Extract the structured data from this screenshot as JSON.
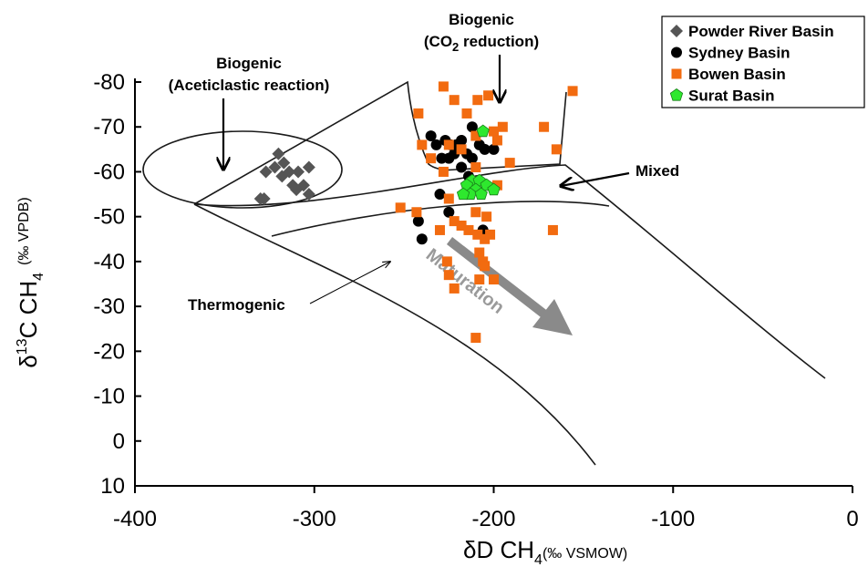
{
  "chart_data": {
    "type": "scatter",
    "xlabel_main": "δD CH",
    "xlabel_sub": "4",
    "xlabel_unit": "(‰ VSMOW)",
    "ylabel_main": "δ",
    "ylabel_sup": "13",
    "ylabel_mid": "C CH",
    "ylabel_sub": "4",
    "ylabel_unit": "(‰ VPDB)",
    "xlim": [
      -400,
      0
    ],
    "ylim": [
      10,
      -80
    ],
    "x_ticks": [
      {
        "value": -400,
        "label": "-400"
      },
      {
        "value": -300,
        "label": "-300"
      },
      {
        "value": -200,
        "label": "-200"
      },
      {
        "value": -100,
        "label": "-100"
      },
      {
        "value": 0,
        "label": "0"
      }
    ],
    "y_ticks": [
      {
        "value": -80,
        "label": "-80"
      },
      {
        "value": -70,
        "label": "-70"
      },
      {
        "value": -60,
        "label": "-60"
      },
      {
        "value": -50,
        "label": "-50"
      },
      {
        "value": -40,
        "label": "-40"
      },
      {
        "value": -30,
        "label": "-30"
      },
      {
        "value": -20,
        "label": "-20"
      },
      {
        "value": -10,
        "label": "-10"
      },
      {
        "value": 0,
        "label": "0"
      },
      {
        "value": 10,
        "label": "10"
      }
    ],
    "legend_position": "top-right",
    "series": [
      {
        "name": "Powder River Basin",
        "marker": "diamond",
        "color": "#555555",
        "points": [
          [
            -320,
            -64
          ],
          [
            -317,
            -62
          ],
          [
            -322,
            -61
          ],
          [
            -314,
            -60
          ],
          [
            -327,
            -60
          ],
          [
            -318,
            -59
          ],
          [
            -303,
            -61
          ],
          [
            -309,
            -60
          ],
          [
            -312,
            -57
          ],
          [
            -306,
            -57
          ],
          [
            -310,
            -56
          ],
          [
            -303,
            -55
          ],
          [
            -330,
            -54
          ],
          [
            -328,
            -54
          ]
        ]
      },
      {
        "name": "Sydney Basin",
        "marker": "circle",
        "color": "#000000",
        "points": [
          [
            -235,
            -68
          ],
          [
            -232,
            -66
          ],
          [
            -227,
            -67
          ],
          [
            -224,
            -66
          ],
          [
            -221,
            -66
          ],
          [
            -218,
            -67
          ],
          [
            -212,
            -70
          ],
          [
            -215,
            -64
          ],
          [
            -222,
            -64
          ],
          [
            -229,
            -63
          ],
          [
            -225,
            -63
          ],
          [
            -212,
            -63
          ],
          [
            -208,
            -66
          ],
          [
            -205,
            -65
          ],
          [
            -200,
            -65
          ],
          [
            -218,
            -61
          ],
          [
            -230,
            -55
          ],
          [
            -225,
            -51
          ],
          [
            -242,
            -49
          ],
          [
            -240,
            -45
          ],
          [
            -206,
            -47
          ],
          [
            -210,
            -56
          ],
          [
            -214,
            -59
          ]
        ]
      },
      {
        "name": "Bowen Basin",
        "marker": "square",
        "color": "#f26b10",
        "points": [
          [
            -228,
            -79
          ],
          [
            -209,
            -76
          ],
          [
            -203,
            -77
          ],
          [
            -156,
            -78
          ],
          [
            -242,
            -73
          ],
          [
            -222,
            -76
          ],
          [
            -215,
            -73
          ],
          [
            -200,
            -69
          ],
          [
            -195,
            -70
          ],
          [
            -172,
            -70
          ],
          [
            -240,
            -66
          ],
          [
            -225,
            -66
          ],
          [
            -218,
            -65
          ],
          [
            -210,
            -68
          ],
          [
            -198,
            -67
          ],
          [
            -165,
            -65
          ],
          [
            -235,
            -63
          ],
          [
            -228,
            -60
          ],
          [
            -210,
            -61
          ],
          [
            -191,
            -62
          ],
          [
            -198,
            -57
          ],
          [
            -225,
            -54
          ],
          [
            -252,
            -52
          ],
          [
            -243,
            -51
          ],
          [
            -222,
            -49
          ],
          [
            -210,
            -51
          ],
          [
            -204,
            -50
          ],
          [
            -218,
            -48
          ],
          [
            -214,
            -47
          ],
          [
            -230,
            -47
          ],
          [
            -209,
            -46
          ],
          [
            -205,
            -45
          ],
          [
            -208,
            -42
          ],
          [
            -206,
            -40
          ],
          [
            -226,
            -40
          ],
          [
            -225,
            -37
          ],
          [
            -208,
            -36
          ],
          [
            -200,
            -36
          ],
          [
            -222,
            -34
          ],
          [
            -210,
            -23
          ],
          [
            -167,
            -47
          ],
          [
            -202,
            -46
          ],
          [
            -205,
            -39
          ]
        ]
      },
      {
        "name": "Surat Basin",
        "marker": "pentagon",
        "color": "#2ee82e",
        "points": [
          [
            -206,
            -69
          ],
          [
            -212,
            -58
          ],
          [
            -208,
            -58
          ],
          [
            -215,
            -57
          ],
          [
            -204,
            -57
          ],
          [
            -210,
            -56
          ],
          [
            -200,
            -56
          ],
          [
            -213,
            -55
          ],
          [
            -207,
            -55
          ],
          [
            -217,
            -55
          ]
        ]
      }
    ],
    "annotations": {
      "biogenic_acetic_line1": "Biogenic",
      "biogenic_acetic_line2": "(Aceticlastic reaction)",
      "biogenic_co2_line1": "Biogenic",
      "biogenic_co2_line2a": "(CO",
      "biogenic_co2_line2_sub": "2",
      "biogenic_co2_line2b": " reduction)",
      "mixed": "Mixed",
      "thermogenic": "Thermogenic",
      "maturation": "Maturation"
    },
    "colors": {
      "axis": "#000000",
      "region_outline": "#1a1a1a",
      "maturation_arrow": "#8a8a8a"
    }
  }
}
